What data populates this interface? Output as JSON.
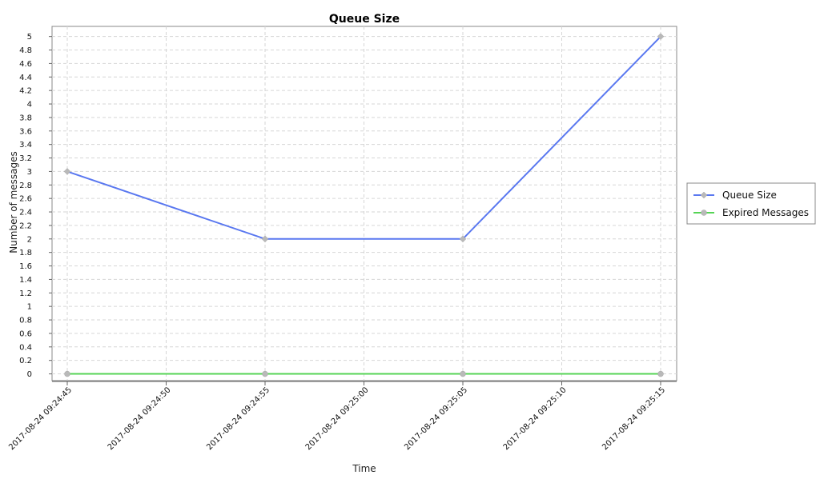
{
  "chart_data": {
    "type": "line",
    "title": "Queue Size",
    "xlabel": "Time",
    "ylabel": "Number of messages",
    "x": [
      "2017-08-24 09:24:45",
      "2017-08-24 09:24:55",
      "2017-08-24 09:25:05",
      "2017-08-24 09:25:15"
    ],
    "x_ticks": [
      "2017-08-24 09:24:45",
      "2017-08-24 09:24:50",
      "2017-08-24 09:24:55",
      "2017-08-24 09:25:00",
      "2017-08-24 09:25:05",
      "2017-08-24 09:25:10",
      "2017-08-24 09:25:15"
    ],
    "y_ticks": [
      "0",
      "0.2",
      "0.4",
      "0.6",
      "0.8",
      "1",
      "1.2",
      "1.4",
      "1.6",
      "1.8",
      "2",
      "2.2",
      "2.4",
      "2.6",
      "2.8",
      "3",
      "3.2",
      "3.4",
      "3.6",
      "3.8",
      "4",
      "4.2",
      "4.4",
      "4.6",
      "4.8",
      "5"
    ],
    "ylim": [
      -0.1,
      5.15
    ],
    "grid": true,
    "legend_position": "right",
    "series": [
      {
        "name": "Queue Size",
        "values": [
          3,
          2,
          2,
          5
        ],
        "color": "#5a78f0",
        "marker": "diamond"
      },
      {
        "name": "Expired Messages",
        "values": [
          0,
          0,
          0,
          0
        ],
        "color": "#55d455",
        "marker": "circle"
      }
    ]
  }
}
